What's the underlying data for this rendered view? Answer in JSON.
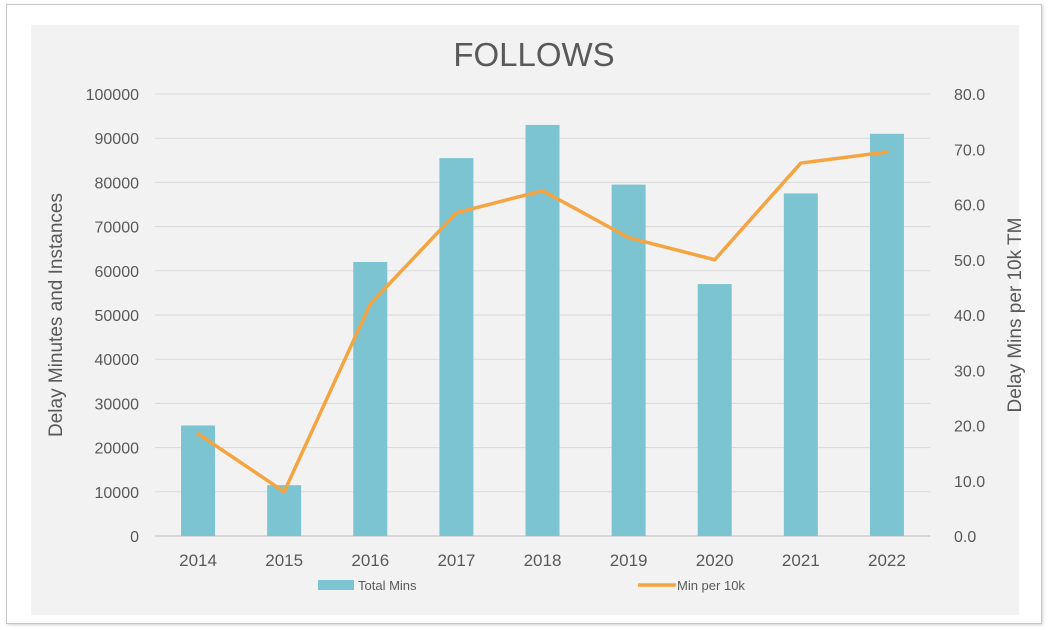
{
  "chart_data": {
    "type": "bar",
    "title": "FOLLOWS",
    "categories": [
      "2014",
      "2015",
      "2016",
      "2017",
      "2018",
      "2019",
      "2020",
      "2021",
      "2022"
    ],
    "series": [
      {
        "name": "Total Mins",
        "type": "bar",
        "axis": "left",
        "color": "#7cc4d1",
        "values": [
          25000,
          11500,
          62000,
          85500,
          93000,
          79500,
          57000,
          77500,
          91000
        ]
      },
      {
        "name": "Min per 10k",
        "type": "line",
        "axis": "right",
        "color": "#f4a441",
        "values": [
          18.5,
          8.0,
          42.0,
          58.5,
          62.5,
          54.0,
          50.0,
          67.5,
          69.5
        ]
      }
    ],
    "ylabel": "Delay Minutes and Instances",
    "y2label": "Delay Mins per 10k TM",
    "ylim": [
      0,
      100000
    ],
    "y2lim": [
      0,
      80
    ],
    "yticks": [
      "0",
      "10000",
      "20000",
      "30000",
      "40000",
      "50000",
      "60000",
      "70000",
      "80000",
      "90000",
      "100000"
    ],
    "y2ticks": [
      "0.0",
      "10.0",
      "20.0",
      "30.0",
      "40.0",
      "50.0",
      "60.0",
      "70.0",
      "80.0"
    ],
    "grid": true,
    "legend_position": "bottom"
  }
}
